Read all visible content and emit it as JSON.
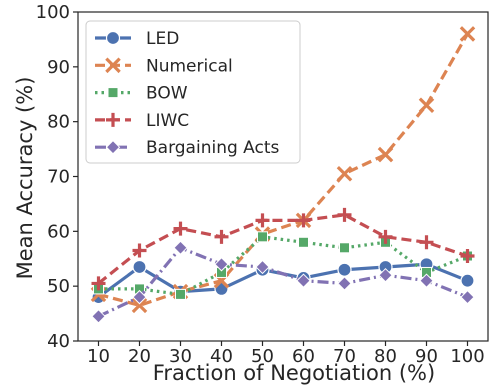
{
  "chart_data": {
    "type": "line",
    "xlabel": "Fraction of Negotiation (%)",
    "ylabel": "Mean Accuracy (%)",
    "x": [
      10,
      20,
      30,
      40,
      50,
      60,
      70,
      80,
      90,
      100
    ],
    "xticks": [
      "10",
      "20",
      "30",
      "40",
      "50",
      "60",
      "70",
      "80",
      "90",
      "100"
    ],
    "yticks": [
      "40",
      "50",
      "60",
      "70",
      "80",
      "90",
      "100"
    ],
    "ylim": [
      40,
      100
    ],
    "xlim": [
      5,
      105
    ],
    "grid": false,
    "legend_position": "top-left",
    "series": [
      {
        "name": "LED",
        "color": "#4c72b0",
        "dash": "solid",
        "marker": "circle",
        "values": [
          48,
          53.5,
          49,
          49.5,
          53,
          51.5,
          53,
          53.5,
          54,
          51
        ]
      },
      {
        "name": "Numerical",
        "color": "#dd8452",
        "dash": "dashed",
        "marker": "x",
        "values": [
          48.5,
          46.5,
          49,
          51,
          59.5,
          62,
          70.5,
          74,
          83,
          96
        ]
      },
      {
        "name": "BOW",
        "color": "#55a868",
        "dash": "dotted",
        "marker": "square",
        "values": [
          49.5,
          49.5,
          48.5,
          52.5,
          59,
          58,
          57,
          58,
          52.5,
          55.5
        ]
      },
      {
        "name": "LIWC",
        "color": "#c44e52",
        "dash": "dashed",
        "marker": "plus",
        "values": [
          50.5,
          56.5,
          60.5,
          59,
          62,
          62,
          63,
          59,
          58,
          55.5
        ]
      },
      {
        "name": "Bargaining Acts",
        "color": "#8172b3",
        "dash": "dashdot",
        "marker": "diamond",
        "values": [
          44.5,
          48,
          57,
          54,
          53.5,
          51,
          50.5,
          52,
          51,
          48
        ]
      }
    ]
  }
}
